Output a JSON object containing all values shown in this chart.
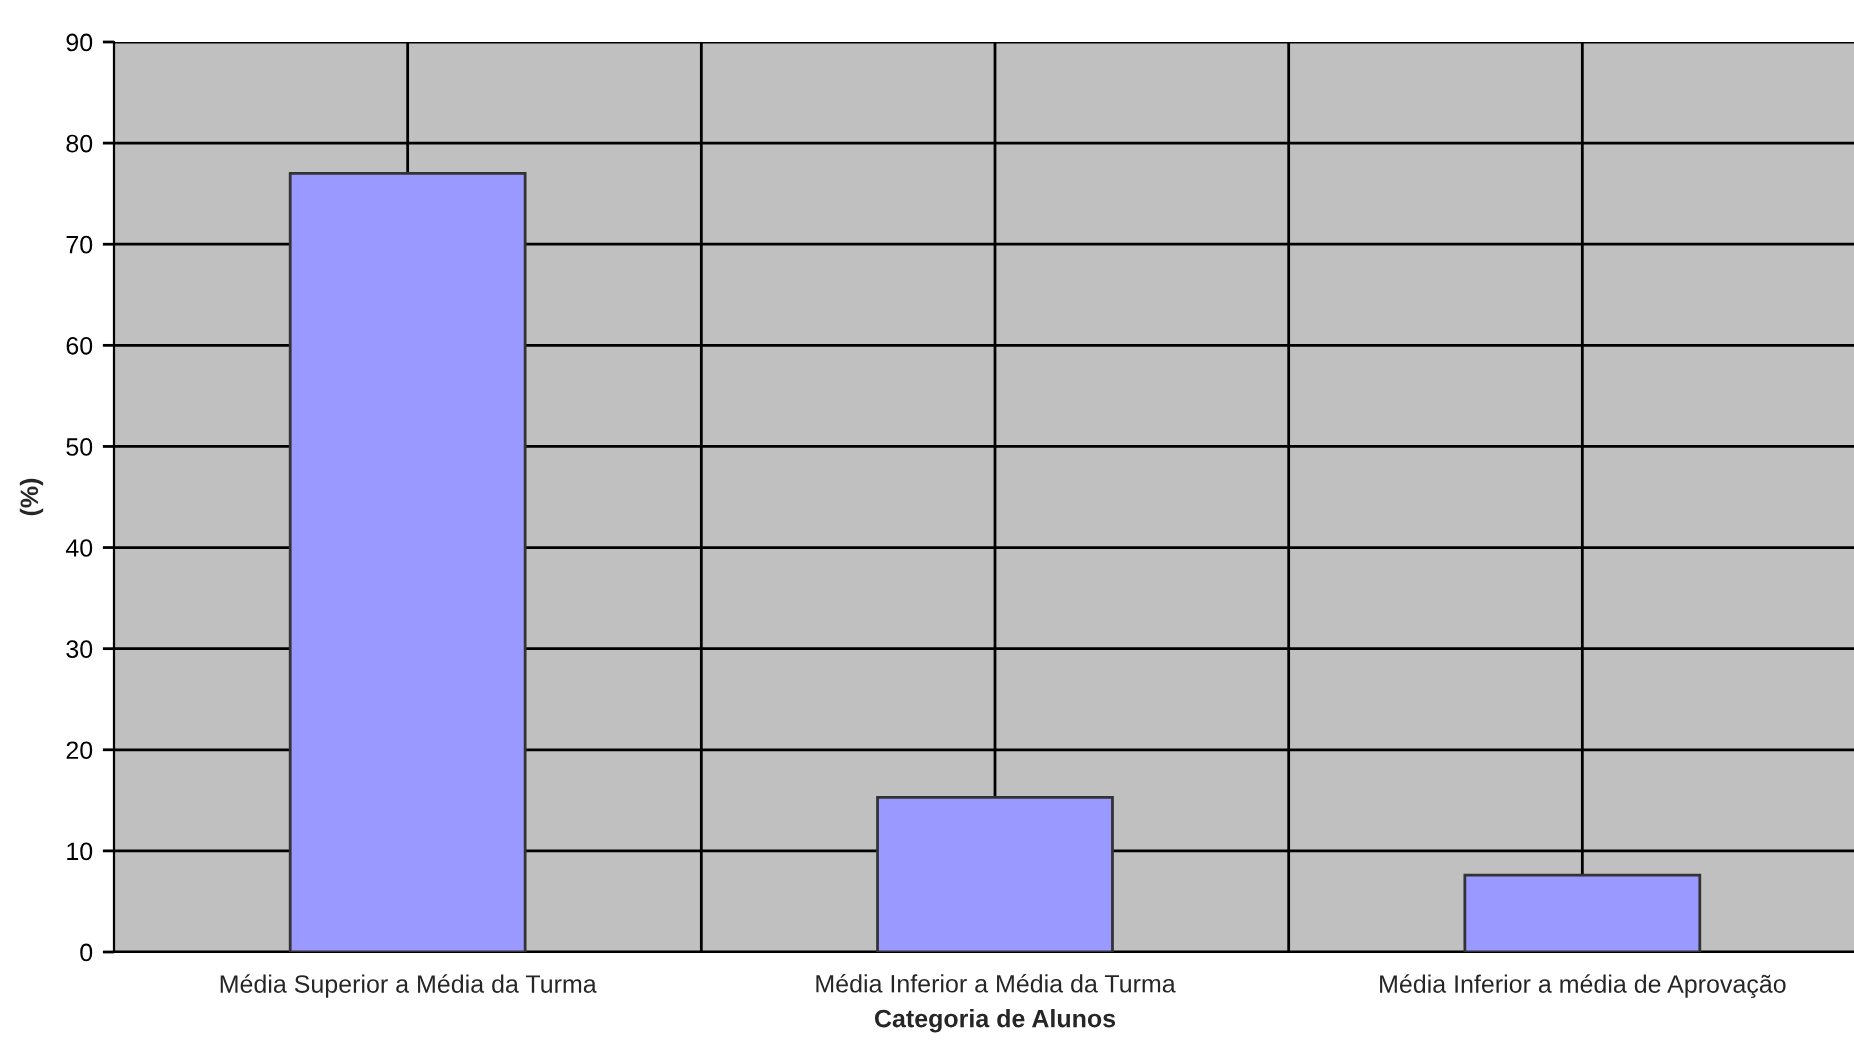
{
  "chart_data": {
    "type": "bar",
    "xlabel": "Categoria de Alunos",
    "ylabel": "(%)",
    "categories": [
      "Média Superior a Média da Turma",
      "Média Inferior a Média da Turma",
      "Média Inferior a média de Aprovação"
    ],
    "values": [
      77,
      15.3,
      7.6
    ],
    "color": "#9999ff",
    "ylim": [
      0,
      90
    ],
    "yticks": [
      0,
      10,
      20,
      30,
      40,
      50,
      60,
      70,
      80,
      90
    ],
    "grid": true
  }
}
